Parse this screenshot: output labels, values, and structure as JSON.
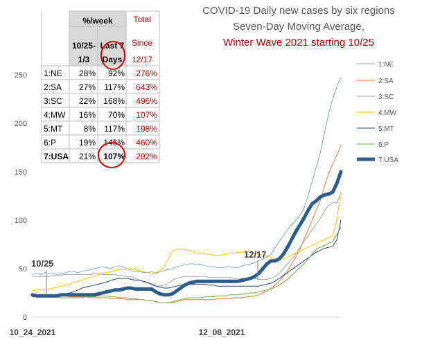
{
  "chart_data": {
    "type": "line",
    "title": [
      "COVID-19 Daily new cases by six regions",
      "Seven-Day Moving Average,",
      "Winter Wave 2021 starting 10/25"
    ],
    "title_colors": [
      "#595959",
      "#595959",
      "#c00000"
    ],
    "ylim": [
      0,
      250
    ],
    "yticks": [
      "0",
      "50",
      "100",
      "150",
      "200",
      "250"
    ],
    "xtick_labels": [
      "10_24_2021",
      "12_08_2021"
    ],
    "x_count": 76,
    "grid": false,
    "legend_position": "right",
    "series": [
      {
        "name": "1:NE",
        "color": "#7fa8c9",
        "width": 1,
        "values": [
          44,
          45,
          44,
          46,
          45,
          45,
          44,
          45,
          46,
          47,
          47,
          46,
          47,
          48,
          49,
          50,
          51,
          52,
          51,
          50,
          52,
          53,
          52,
          50,
          48,
          47,
          47,
          46,
          46,
          47,
          45,
          47,
          48,
          49,
          50,
          52,
          53,
          54,
          55,
          55,
          54,
          54,
          53,
          52,
          52,
          51,
          51,
          52,
          52,
          51,
          51,
          53,
          54,
          55,
          56,
          58,
          60,
          62,
          65,
          72,
          78,
          84,
          90,
          95,
          100,
          105,
          112,
          125,
          140,
          155,
          170,
          190,
          210,
          225,
          238,
          247
        ]
      },
      {
        "name": "2:SA",
        "color": "#ed7d31",
        "width": 1,
        "values": [
          22,
          22,
          22,
          22,
          22,
          22,
          22,
          22,
          22,
          21,
          21,
          21,
          21,
          21,
          20,
          20,
          20,
          20,
          20,
          19,
          19,
          19,
          19,
          18,
          18,
          18,
          18,
          18,
          17,
          17,
          16,
          15,
          15,
          15,
          15,
          16,
          17,
          18,
          18,
          18,
          18,
          18,
          18,
          18,
          18,
          19,
          19,
          19,
          19,
          20,
          20,
          20,
          21,
          21,
          22,
          23,
          25,
          27,
          30,
          33,
          37,
          42,
          48,
          55,
          62,
          70,
          80,
          90,
          100,
          110,
          120,
          135,
          148,
          158,
          167,
          177
        ]
      },
      {
        "name": "3:SC",
        "color": "#a5a5a5",
        "width": 1,
        "values": [
          42,
          42,
          42,
          42,
          42,
          43,
          43,
          43,
          44,
          44,
          44,
          44,
          44,
          44,
          44,
          45,
          45,
          44,
          44,
          44,
          44,
          43,
          43,
          42,
          42,
          40,
          38,
          36,
          35,
          33,
          32,
          32,
          33,
          35,
          38,
          40,
          41,
          42,
          42,
          42,
          42,
          42,
          42,
          41,
          41,
          41,
          41,
          41,
          41,
          40,
          40,
          40,
          40,
          40,
          40,
          39,
          39,
          39,
          40,
          42,
          45,
          50,
          55,
          60,
          65,
          72,
          78,
          84,
          90,
          96,
          102,
          110,
          115,
          118,
          118,
          128
        ]
      },
      {
        "name": "4:MW",
        "color": "#ffc000",
        "width": 1,
        "values": [
          27,
          28,
          28,
          29,
          29,
          30,
          31,
          32,
          33,
          34,
          36,
          37,
          38,
          40,
          41,
          42,
          44,
          45,
          46,
          47,
          48,
          49,
          49,
          50,
          50,
          49,
          48,
          47,
          46,
          45,
          46,
          48,
          52,
          60,
          68,
          70,
          70,
          70,
          69,
          68,
          66,
          66,
          65,
          65,
          64,
          64,
          64,
          65,
          66,
          66,
          67,
          67,
          68,
          67,
          66,
          65,
          64,
          63,
          62,
          60,
          60,
          60,
          62,
          64,
          66,
          68,
          70,
          72,
          74,
          76,
          78,
          80,
          82,
          84,
          100,
          130
        ]
      },
      {
        "name": "5:MT",
        "color": "#264478",
        "width": 1,
        "values": [
          21,
          21,
          21,
          22,
          22,
          22,
          23,
          23,
          24,
          25,
          26,
          28,
          30,
          31,
          32,
          33,
          34,
          35,
          36,
          38,
          39,
          40,
          40,
          40,
          39,
          38,
          38,
          37,
          36,
          34,
          32,
          31,
          30,
          30,
          31,
          32,
          33,
          34,
          34,
          34,
          34,
          34,
          34,
          33,
          33,
          32,
          32,
          32,
          32,
          32,
          32,
          32,
          32,
          32,
          32,
          32,
          33,
          34,
          35,
          37,
          40,
          43,
          46,
          49,
          52,
          55,
          58,
          61,
          64,
          67,
          69,
          71,
          72,
          73,
          80,
          100
        ]
      },
      {
        "name": "6:P",
        "color": "#70ad47",
        "width": 1,
        "values": [
          22,
          22,
          22,
          21,
          21,
          21,
          21,
          20,
          20,
          20,
          20,
          20,
          20,
          21,
          21,
          21,
          22,
          22,
          22,
          21,
          21,
          20,
          20,
          20,
          19,
          19,
          18,
          18,
          17,
          17,
          16,
          15,
          15,
          15,
          16,
          17,
          18,
          19,
          20,
          20,
          20,
          20,
          21,
          21,
          21,
          22,
          22,
          22,
          23,
          23,
          23,
          24,
          24,
          25,
          25,
          26,
          27,
          28,
          29,
          31,
          33,
          36,
          39,
          43,
          47,
          51,
          55,
          60,
          65,
          70,
          72,
          74,
          76,
          78,
          85,
          93
        ]
      },
      {
        "name": "7:USA",
        "color": "#2e5d8a",
        "width": 5,
        "values": [
          23,
          22,
          22,
          22,
          22,
          22,
          22,
          23,
          23,
          23,
          23,
          23,
          23,
          23,
          23,
          23,
          24,
          25,
          26,
          27,
          28,
          28,
          29,
          30,
          30,
          29,
          29,
          29,
          29,
          29,
          26,
          24,
          23,
          23,
          24,
          27,
          30,
          33,
          35,
          36,
          37,
          37,
          37,
          37,
          37,
          37,
          37,
          37,
          37,
          37,
          37,
          38,
          39,
          40,
          42,
          45,
          50,
          55,
          58,
          58,
          60,
          65,
          72,
          80,
          88,
          95,
          102,
          110,
          117,
          120,
          124,
          126,
          127,
          129,
          138,
          150
        ]
      }
    ],
    "table": {
      "header_top": "%/week",
      "header_total": "Total",
      "header_since": "Since",
      "header_col1_line1": "10/25-",
      "header_col1_line2": "1/3",
      "header_col2_line1": "Last 7",
      "header_col2_line2": "Days",
      "header_col3": "12/17",
      "rows": [
        {
          "region": "1:NE",
          "a": "28%",
          "b": "92%",
          "c": "276%"
        },
        {
          "region": "2:SA",
          "a": "27%",
          "b": "117%",
          "c": "643%"
        },
        {
          "region": "3:SC",
          "a": "22%",
          "b": "168%",
          "c": "496%"
        },
        {
          "region": "4:MW",
          "a": "16%",
          "b": "70%",
          "c": "107%"
        },
        {
          "region": "5:MT",
          "a": "8%",
          "b": "117%",
          "c": "198%"
        },
        {
          "region": "6:P",
          "a": "19%",
          "b": "146%",
          "c": "460%"
        },
        {
          "region": "7:USA",
          "a": "21%",
          "b": "107%",
          "c": "292%"
        }
      ]
    },
    "annotations": [
      {
        "text": "10/25",
        "x_index": 1
      },
      {
        "text": "12/17",
        "x_index": 55
      }
    ]
  }
}
